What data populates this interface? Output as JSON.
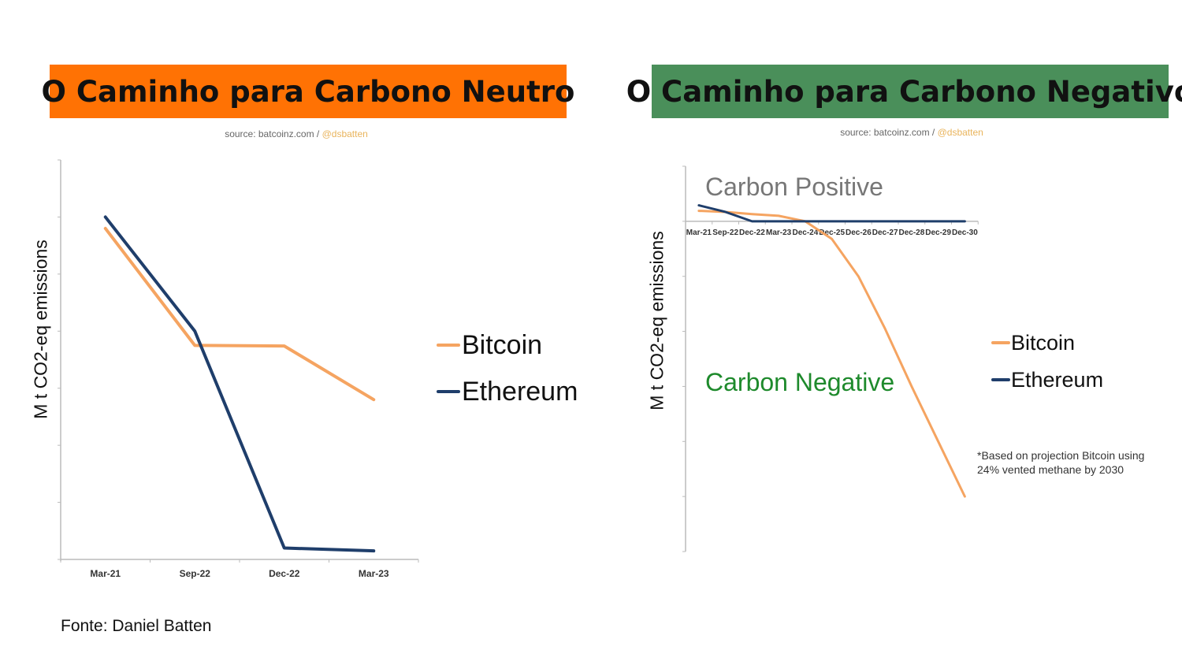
{
  "left_panel": {
    "title": "O Caminho para Carbono Neutro",
    "source_prefix": "source: batcoinz.com / ",
    "source_handle": "@dsbatten",
    "ylabel": "M t CO2-eq emissions",
    "legend": [
      "Bitcoin",
      "Ethereum"
    ]
  },
  "right_panel": {
    "title": "O Caminho para Carbono Negativo",
    "source_prefix": "source: batcoinz.com / ",
    "source_handle": "@dsbatten",
    "ylabel": "M t CO2-eq emissions",
    "legend": [
      "Bitcoin",
      "Ethereum"
    ],
    "annotation_positive": "Carbon Positive",
    "annotation_negative": "Carbon Negative",
    "note_line1": "*Based on projection Bitcoin using",
    "note_line2": "24% vented methane by 2030"
  },
  "footer": "Fonte: Daniel Batten",
  "colors": {
    "bitcoin": "#f5a461",
    "ethereum": "#1f3e6b",
    "axis": "#bbbbbb",
    "banner_left": "#ff7204",
    "banner_right": "#4a8f5a"
  },
  "chart_data": [
    {
      "type": "line",
      "categories": [
        "Mar-21",
        "Sep-22",
        "Dec-22",
        "Mar-23"
      ],
      "series": [
        {
          "name": "Bitcoin",
          "values": [
            58,
            37.5,
            37.4,
            28
          ]
        },
        {
          "name": "Ethereum",
          "values": [
            60,
            40,
            2,
            1.5
          ]
        }
      ],
      "ylim": [
        0,
        70
      ],
      "y_ticks": 7,
      "ylabel": "M t CO2-eq emissions",
      "xlabel": "",
      "legend_position": "right",
      "grid": false
    },
    {
      "type": "line",
      "categories": [
        "Mar-21",
        "Sep-22",
        "Dec-22",
        "Mar-23",
        "Dec-24",
        "Dec-25",
        "Dec-26",
        "Dec-27",
        "Dec-28",
        "Dec-29",
        "Dec-30"
      ],
      "series": [
        {
          "name": "Bitcoin",
          "values": [
            1.9,
            1.7,
            1.3,
            1.0,
            0,
            -3.2,
            -10,
            -19.5,
            -30,
            -40,
            -50
          ]
        },
        {
          "name": "Ethereum",
          "values": [
            2.9,
            1.7,
            0,
            0,
            0,
            0,
            0,
            0,
            0,
            0,
            0
          ]
        }
      ],
      "ylim": [
        -60,
        10
      ],
      "y_ticks": 7,
      "ylabel": "M t CO2-eq emissions",
      "xlabel": "",
      "legend_position": "right",
      "grid": false
    }
  ]
}
